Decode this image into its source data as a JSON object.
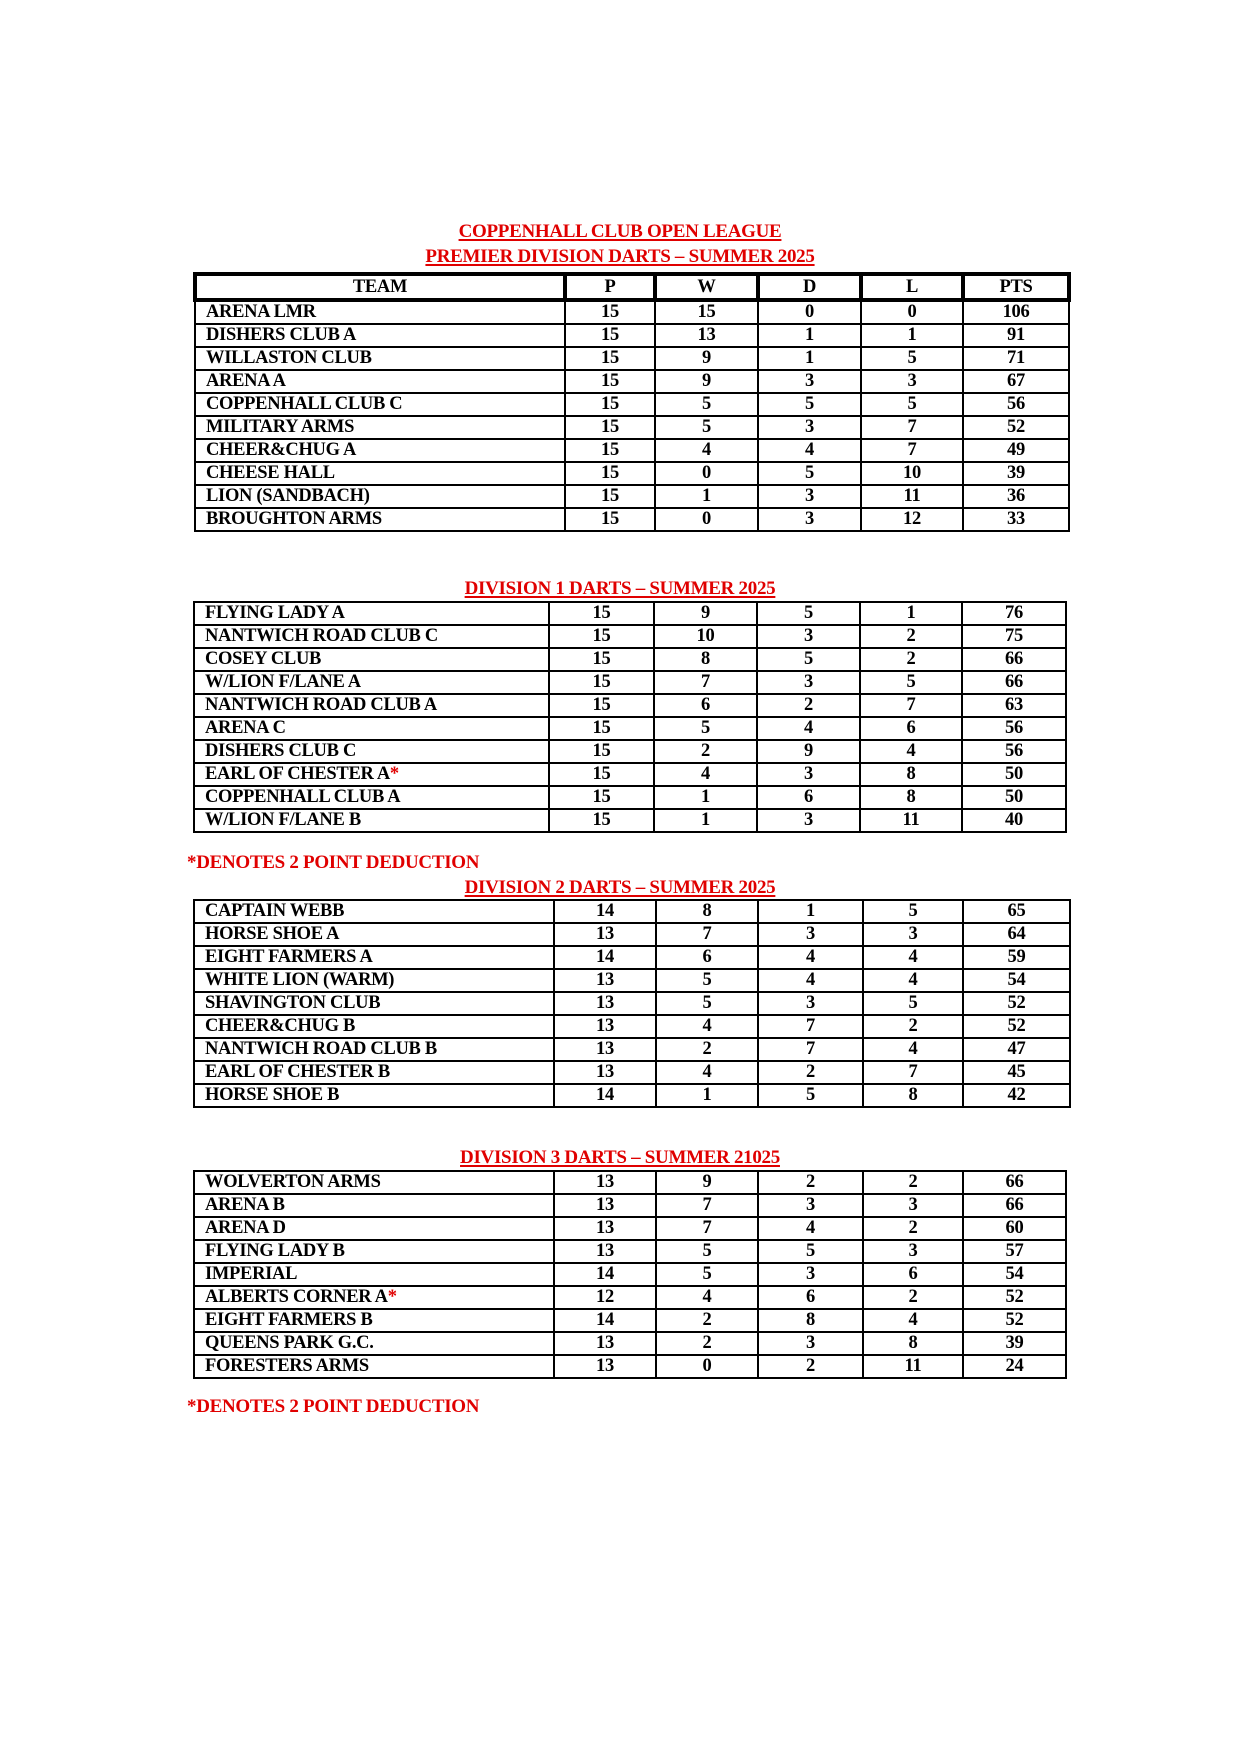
{
  "header": {
    "league_title": "COPPENHALL CLUB OPEN LEAGUE"
  },
  "columns": [
    "TEAM",
    "P",
    "W",
    "D",
    "L",
    "PTS"
  ],
  "colors": {
    "heading": "#e00000",
    "text": "#000000"
  },
  "divisions": [
    {
      "title": "PREMIER DIVISION DARTS – SUMMER 2025",
      "rows": [
        {
          "team": "ARENA LMR",
          "p": "15",
          "w": "15",
          "d": "0",
          "l": "0",
          "pts": "106"
        },
        {
          "team": "DISHERS CLUB A",
          "p": "15",
          "w": "13",
          "d": "1",
          "l": "1",
          "pts": "91"
        },
        {
          "team": "WILLASTON CLUB",
          "p": "15",
          "w": "9",
          "d": "1",
          "l": "5",
          "pts": "71"
        },
        {
          "team": "ARENA A",
          "p": "15",
          "w": "9",
          "d": "3",
          "l": "3",
          "pts": "67"
        },
        {
          "team": "COPPENHALL CLUB C",
          "p": "15",
          "w": "5",
          "d": "5",
          "l": "5",
          "pts": "56"
        },
        {
          "team": "MILITARY ARMS",
          "p": "15",
          "w": "5",
          "d": "3",
          "l": "7",
          "pts": "52"
        },
        {
          "team": "CHEER&CHUG A",
          "p": "15",
          "w": "4",
          "d": "4",
          "l": "7",
          "pts": "49"
        },
        {
          "team": "CHEESE HALL",
          "p": "15",
          "w": "0",
          "d": "5",
          "l": "10",
          "pts": "39"
        },
        {
          "team": "LION (SANDBACH)",
          "p": "15",
          "w": "1",
          "d": "3",
          "l": "11",
          "pts": "36"
        },
        {
          "team": "BROUGHTON ARMS",
          "p": "15",
          "w": "0",
          "d": "3",
          "l": "12",
          "pts": "33"
        }
      ]
    },
    {
      "title": "DIVISION 1 DARTS – SUMMER 2025",
      "note": "*DENOTES 2 POINT DEDUCTION",
      "rows": [
        {
          "team": "FLYING LADY A",
          "p": "15",
          "w": "9",
          "d": "5",
          "l": "1",
          "pts": "76"
        },
        {
          "team": "NANTWICH ROAD CLUB C",
          "p": "15",
          "w": "10",
          "d": "3",
          "l": "2",
          "pts": "75"
        },
        {
          "team": "COSEY CLUB",
          "p": "15",
          "w": "8",
          "d": "5",
          "l": "2",
          "pts": "66"
        },
        {
          "team": "W/LION F/LANE A",
          "p": "15",
          "w": "7",
          "d": "3",
          "l": "5",
          "pts": "66"
        },
        {
          "team": "NANTWICH ROAD CLUB A",
          "p": "15",
          "w": "6",
          "d": "2",
          "l": "7",
          "pts": "63"
        },
        {
          "team": "ARENA C",
          "p": "15",
          "w": "5",
          "d": "4",
          "l": "6",
          "pts": "56"
        },
        {
          "team": "DISHERS CLUB C",
          "p": "15",
          "w": "2",
          "d": "9",
          "l": "4",
          "pts": "56"
        },
        {
          "team": "EARL OF CHESTER A",
          "mark": "*",
          "p": "15",
          "w": "4",
          "d": "3",
          "l": "8",
          "pts": "50"
        },
        {
          "team": "COPPENHALL CLUB A",
          "p": "15",
          "w": "1",
          "d": "6",
          "l": "8",
          "pts": "50"
        },
        {
          "team": "W/LION F/LANE B",
          "p": "15",
          "w": "1",
          "d": "3",
          "l": "11",
          "pts": "40"
        }
      ]
    },
    {
      "title": "DIVISION 2 DARTS – SUMMER 2025",
      "rows": [
        {
          "team": "CAPTAIN WEBB",
          "p": "14",
          "w": "8",
          "d": "1",
          "l": "5",
          "pts": "65"
        },
        {
          "team": "HORSE SHOE A",
          "p": "13",
          "w": "7",
          "d": "3",
          "l": "3",
          "pts": "64"
        },
        {
          "team": "EIGHT FARMERS A",
          "p": "14",
          "w": "6",
          "d": "4",
          "l": "4",
          "pts": "59"
        },
        {
          "team": "WHITE LION (WARM)",
          "p": "13",
          "w": "5",
          "d": "4",
          "l": "4",
          "pts": "54"
        },
        {
          "team": "SHAVINGTON CLUB",
          "p": "13",
          "w": "5",
          "d": "3",
          "l": "5",
          "pts": "52"
        },
        {
          "team": "CHEER&CHUG B",
          "p": "13",
          "w": "4",
          "d": "7",
          "l": "2",
          "pts": "52"
        },
        {
          "team": "NANTWICH ROAD CLUB B",
          "p": "13",
          "w": "2",
          "d": "7",
          "l": "4",
          "pts": "47"
        },
        {
          "team": "EARL OF CHESTER B",
          "p": "13",
          "w": "4",
          "d": "2",
          "l": "7",
          "pts": "45"
        },
        {
          "team": "HORSE SHOE B",
          "p": "14",
          "w": "1",
          "d": "5",
          "l": "8",
          "pts": "42"
        }
      ]
    },
    {
      "title": "DIVISION 3 DARTS – SUMMER 21025",
      "note": "*DENOTES 2 POINT DEDUCTION",
      "rows": [
        {
          "team": "WOLVERTON ARMS",
          "p": "13",
          "w": "9",
          "d": "2",
          "l": "2",
          "pts": "66"
        },
        {
          "team": "ARENA B",
          "p": "13",
          "w": "7",
          "d": "3",
          "l": "3",
          "pts": "66"
        },
        {
          "team": "ARENA D",
          "p": "13",
          "w": "7",
          "d": "4",
          "l": "2",
          "pts": "60"
        },
        {
          "team": "FLYING LADY B",
          "p": "13",
          "w": "5",
          "d": "5",
          "l": "3",
          "pts": "57"
        },
        {
          "team": "IMPERIAL",
          "p": "14",
          "w": "5",
          "d": "3",
          "l": "6",
          "pts": "54"
        },
        {
          "team": "ALBERTS CORNER A",
          "mark": "*",
          "p": "12",
          "w": "4",
          "d": "6",
          "l": "2",
          "pts": "52"
        },
        {
          "team": "EIGHT FARMERS B",
          "p": "14",
          "w": "2",
          "d": "8",
          "l": "4",
          "pts": "52"
        },
        {
          "team": "QUEENS PARK G.C.",
          "p": "13",
          "w": "2",
          "d": "3",
          "l": "8",
          "pts": "39"
        },
        {
          "team": "FORESTERS ARMS",
          "p": "13",
          "w": "0",
          "d": "2",
          "l": "11",
          "pts": "24"
        }
      ]
    }
  ]
}
